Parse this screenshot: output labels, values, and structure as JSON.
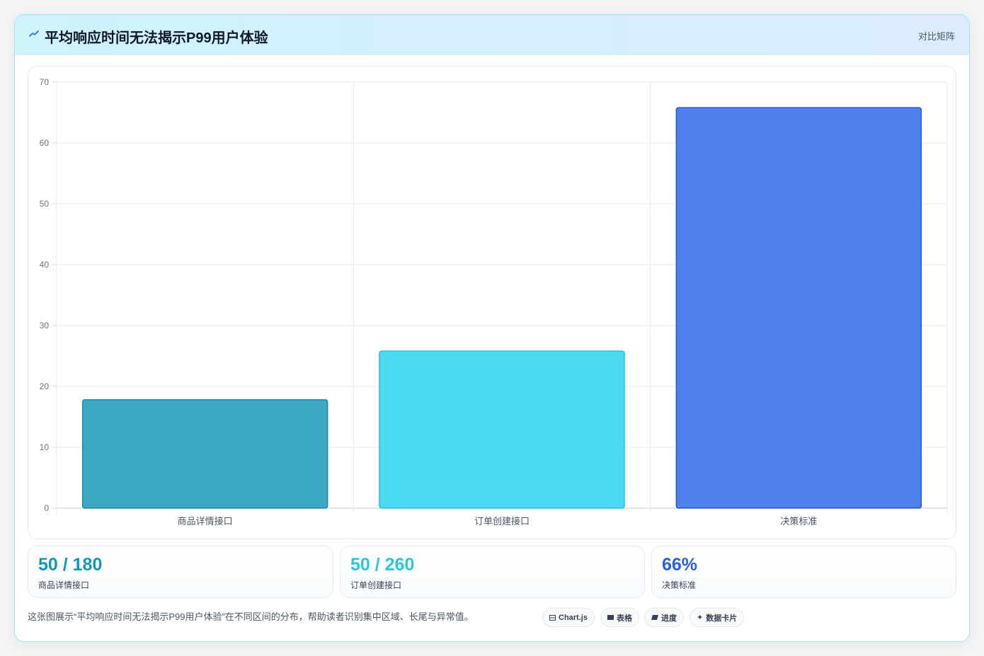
{
  "header": {
    "title": "平均响应时间无法揭示P99用户体验",
    "link": "对比矩阵",
    "icon": "trend-icon"
  },
  "chart_data": {
    "type": "bar",
    "categories": [
      "商品详情接口",
      "订单创建接口",
      "决策标准"
    ],
    "values": [
      17.8,
      25.8,
      65.8
    ],
    "colors": [
      "#27a0bd",
      "#36d7ef",
      "#3b73ea"
    ],
    "border_colors": [
      "#1a89a6",
      "#22c3dd",
      "#2458d6"
    ],
    "ylim": [
      0,
      70
    ],
    "yticks": [
      0,
      10,
      20,
      30,
      40,
      50,
      60,
      70
    ],
    "grid": true
  },
  "stats": [
    {
      "value": "50 / 180",
      "label": "商品详情接口",
      "color": "#1597b3"
    },
    {
      "value": "50 / 260",
      "label": "订单创建接口",
      "color": "#2cc5e0"
    },
    {
      "value": "66%",
      "label": "决策标准",
      "color": "#2a5fd8"
    }
  ],
  "description": "这张图展示“平均响应时间无法揭示P99用户体验”在不同区间的分布，帮助读者识别集中区域、长尾与异常值。",
  "chips": [
    {
      "icon": "chart-icon",
      "label": "Chart.js"
    },
    {
      "icon": "table-icon",
      "label": "表格"
    },
    {
      "icon": "progress-icon",
      "label": "进度"
    },
    {
      "icon": "sparkle-icon",
      "label": "数据卡片"
    }
  ]
}
